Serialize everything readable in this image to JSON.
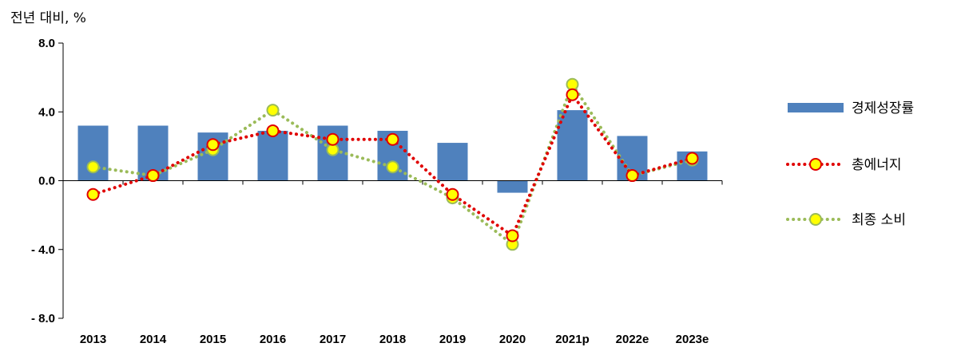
{
  "chart_data": {
    "type": "bar",
    "title": "",
    "ylabel": "전년 대비, %",
    "xlabel": "",
    "categories": [
      "2013",
      "2014",
      "2015",
      "2016",
      "2017",
      "2018",
      "2019",
      "2020",
      "2021p",
      "2022e",
      "2023e"
    ],
    "ylim": [
      -8.0,
      8.0
    ],
    "yticks": [
      8.0,
      4.0,
      0.0,
      -4.0,
      -8.0
    ],
    "ytick_labels": [
      "8.0",
      "4.0",
      "0.0",
      "- 4.0",
      "- 8.0"
    ],
    "grid": false,
    "legend_position": "right",
    "series": [
      {
        "name": "경제성장률",
        "kind": "bar",
        "color": "#4f81bd",
        "values": [
          3.2,
          3.2,
          2.8,
          2.9,
          3.2,
          2.9,
          2.2,
          -0.7,
          4.1,
          2.6,
          1.7
        ]
      },
      {
        "name": "총에너지",
        "kind": "line",
        "style": "dotted",
        "color": "#e00000",
        "marker_fill": "#ffff00",
        "values": [
          -0.8,
          0.3,
          2.1,
          2.9,
          2.4,
          2.4,
          -0.8,
          -3.2,
          5.0,
          0.3,
          1.3
        ]
      },
      {
        "name": "최종 소비",
        "kind": "line",
        "style": "dotted",
        "color": "#9bbb59",
        "marker_fill": "#ffff00",
        "values": [
          0.8,
          0.3,
          1.8,
          4.1,
          1.8,
          0.8,
          -1.0,
          -3.7,
          5.6,
          0.3,
          1.2
        ]
      }
    ]
  }
}
